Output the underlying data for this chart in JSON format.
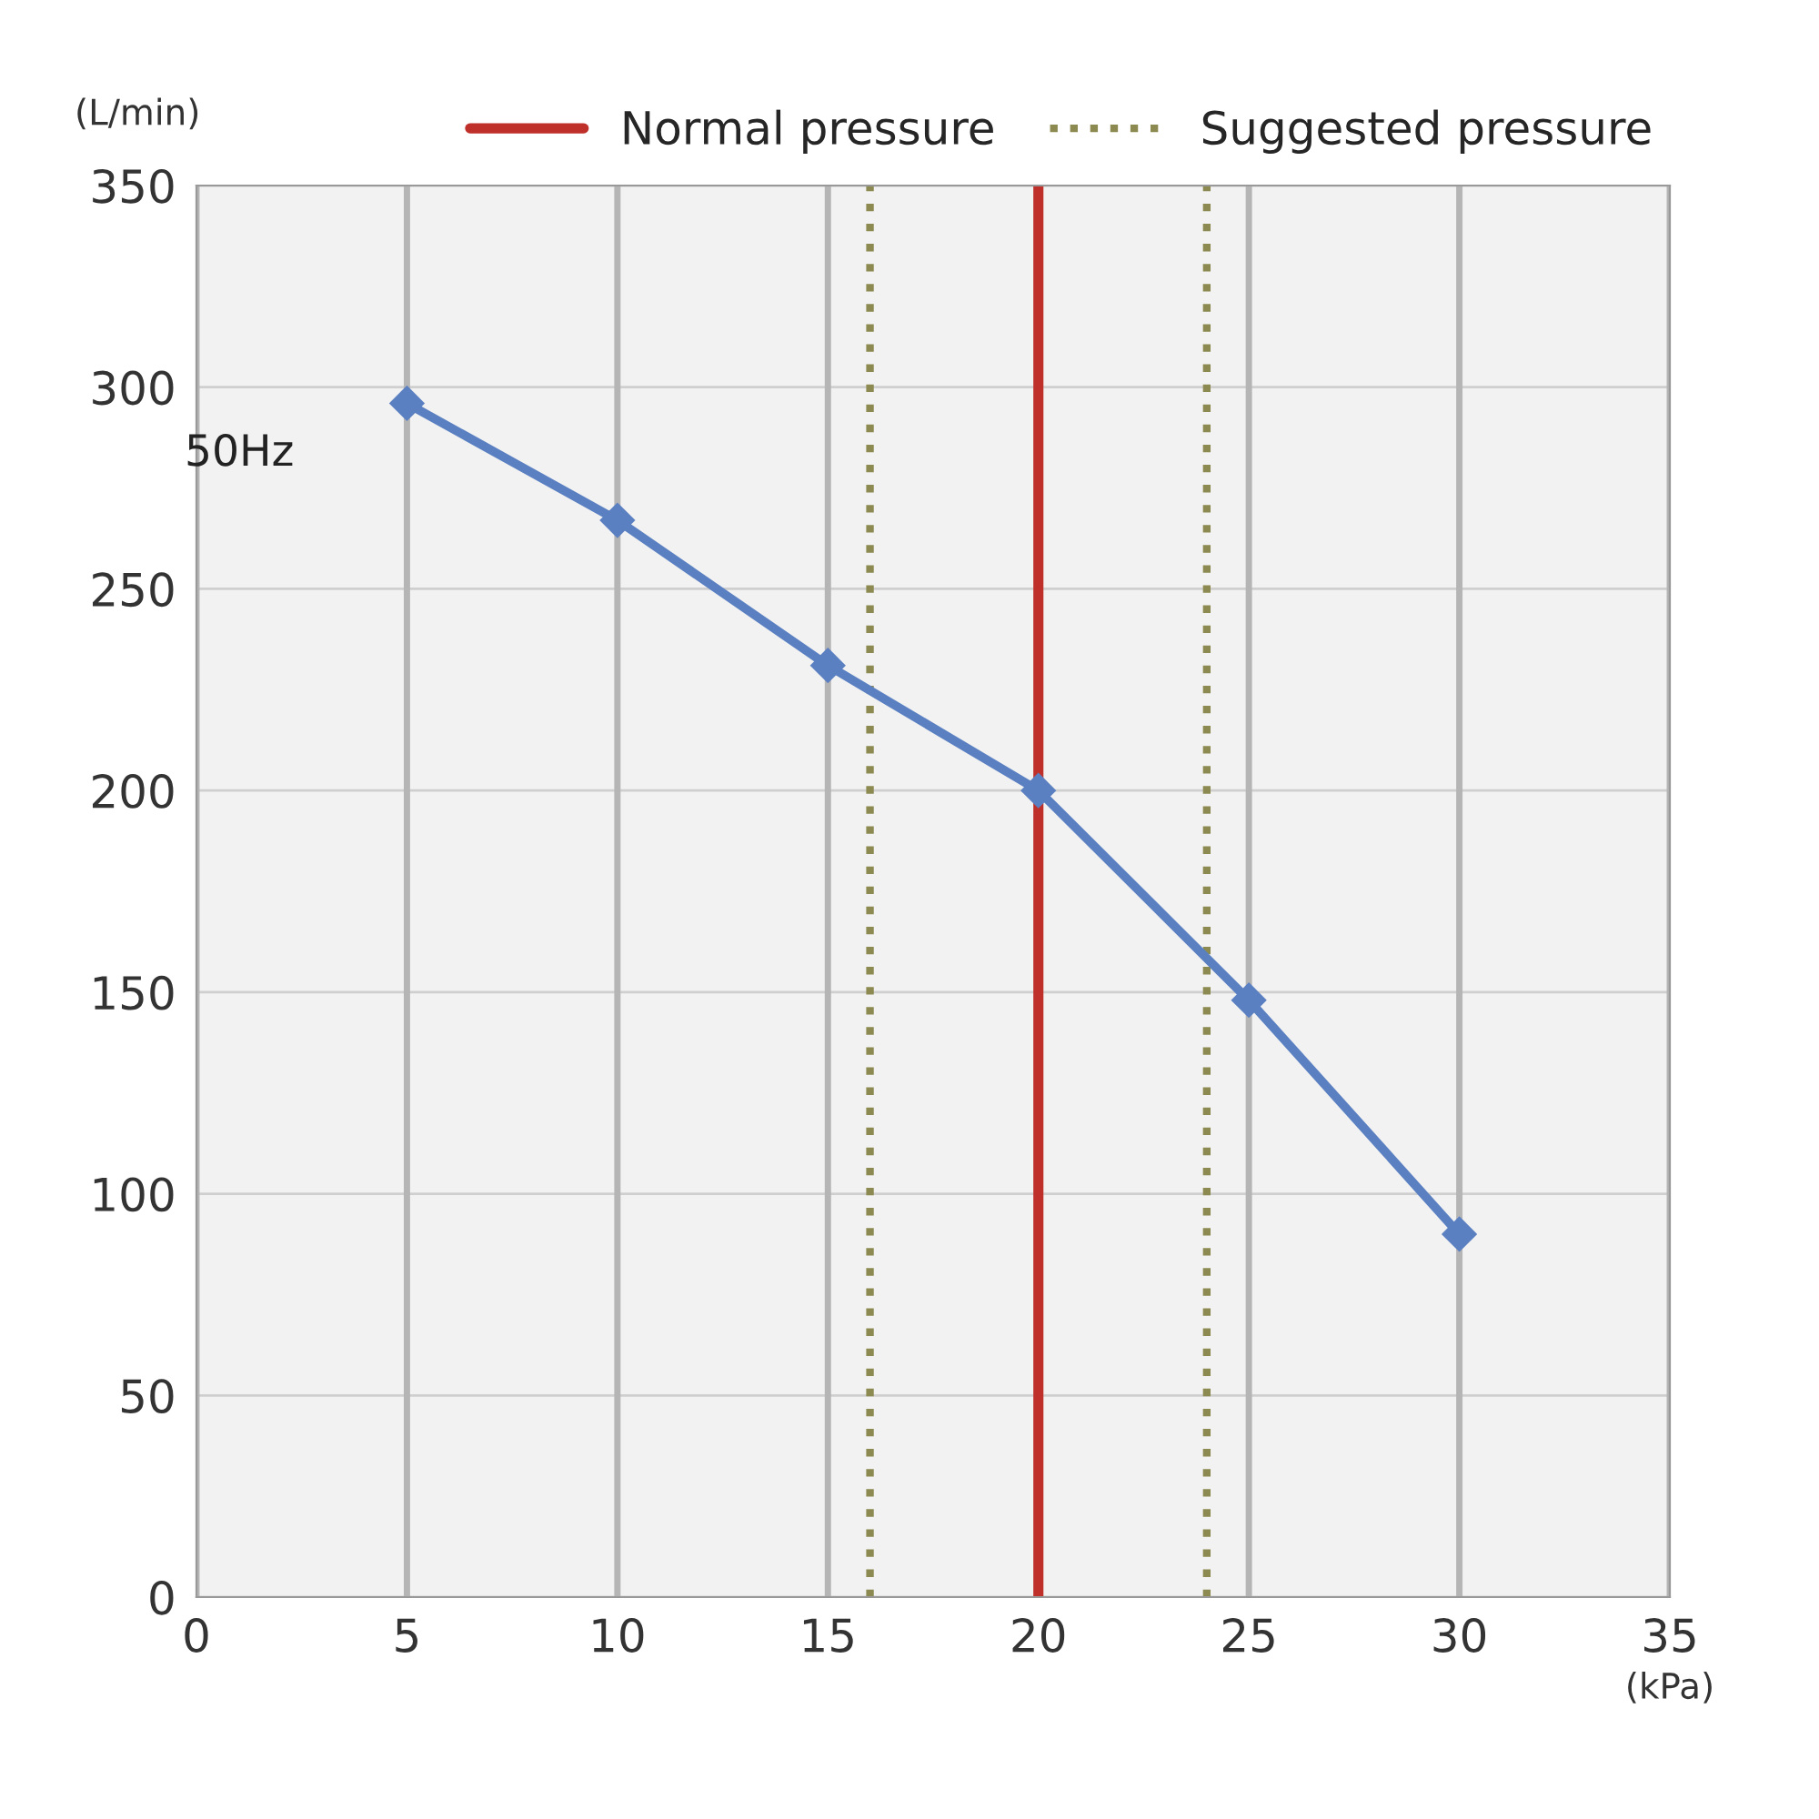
{
  "chart_data": {
    "type": "line",
    "xlabel": "(kPa)",
    "ylabel": "(L/min)",
    "x": [
      5,
      10,
      15,
      20,
      25,
      30
    ],
    "series": [
      {
        "color": "#5b80c2",
        "values": [
          296,
          267,
          231,
          200,
          148,
          90
        ]
      }
    ],
    "marker": "diamond",
    "line_style": "solid",
    "xlim": [
      0,
      35
    ],
    "xticks": [
      0,
      5,
      10,
      15,
      20,
      25,
      30,
      35
    ],
    "ylim": [
      0,
      350
    ],
    "yticks": [
      0,
      50,
      100,
      150,
      200,
      250,
      300,
      350
    ],
    "grid": true,
    "legend": "top right",
    "ref_lines": [
      {
        "axis": "x",
        "value": 20,
        "label": "Normal pressure",
        "color": "#c0302b",
        "line_style": "solid"
      },
      {
        "axis": "x",
        "value": 16,
        "label": "Suggested pressure",
        "color": "#8c8a50",
        "line_style": "dotted"
      },
      {
        "axis": "x",
        "value": 24,
        "label": null,
        "color": "#8c8a50",
        "line_style": "dotted"
      }
    ],
    "annotations": [
      {
        "text": "50Hz",
        "x": 5,
        "y": 296
      }
    ]
  }
}
